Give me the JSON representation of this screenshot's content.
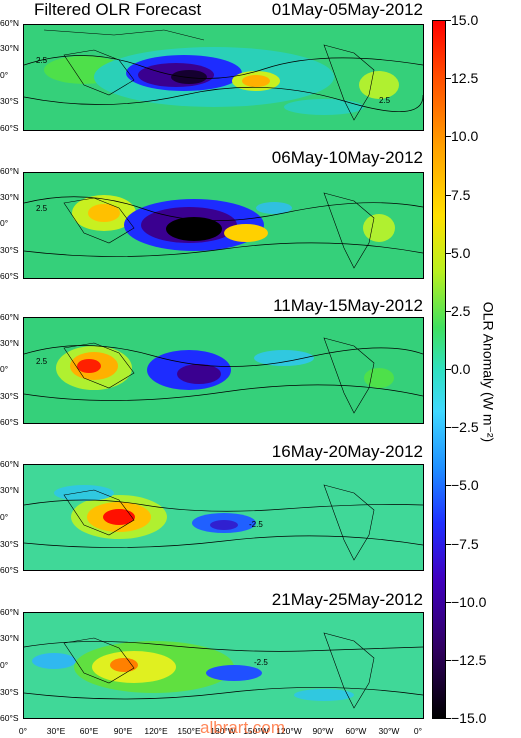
{
  "header": {
    "title": "Filtered OLR  Forecast"
  },
  "panels": [
    {
      "date": "01May-05May-2012"
    },
    {
      "date": "06May-10May-2012"
    },
    {
      "date": "11May-15May-2012"
    },
    {
      "date": "16May-20May-2012"
    },
    {
      "date": "21May-25May-2012"
    }
  ],
  "lat_labels": [
    "60°N",
    "30°N",
    "0°",
    "30°S",
    "60°S"
  ],
  "lon_labels": [
    "0°",
    "30°E",
    "60°E",
    "90°E",
    "120°E",
    "150°E",
    "180°W",
    "150°W",
    "120°W",
    "90°W",
    "60°W",
    "30°W",
    "0°"
  ],
  "colorbar": {
    "ticks": [
      "15.0",
      "12.5",
      "10.0",
      "7.5",
      "5.0",
      "2.5",
      "0.0",
      "−2.5",
      "−5.0",
      "−7.5",
      "−10.0",
      "−12.5",
      "−15.0"
    ],
    "label": "OLR Anomaly (W m⁻²)",
    "range": [
      -15,
      15
    ]
  },
  "contour_labels": [
    "2.5",
    "-2.5"
  ],
  "watermark": "albrart.com"
}
